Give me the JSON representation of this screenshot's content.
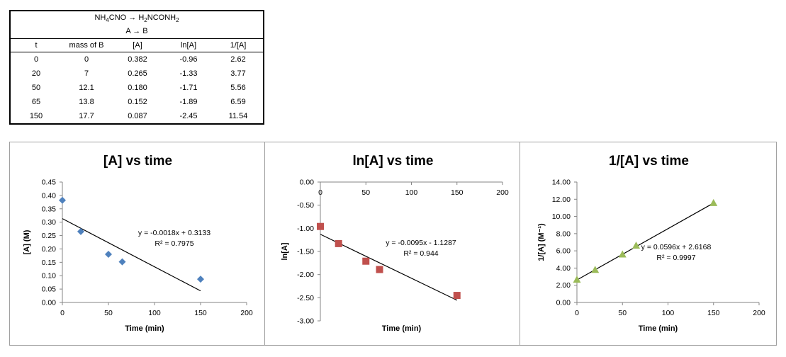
{
  "table": {
    "reaction": [
      "NH",
      "4",
      "CNO → H",
      "2",
      "NCONH",
      "2"
    ],
    "reaction_label": "A → B",
    "columns": [
      "t",
      "mass of B",
      "[A]",
      "ln[A]",
      "1/[A]"
    ],
    "rows": [
      [
        "0",
        "0",
        "0.382",
        "-0.96",
        "2.62"
      ],
      [
        "20",
        "7",
        "0.265",
        "-1.33",
        "3.77"
      ],
      [
        "50",
        "12.1",
        "0.180",
        "-1.71",
        "5.56"
      ],
      [
        "65",
        "13.8",
        "0.152",
        "-1.89",
        "6.59"
      ],
      [
        "150",
        "17.7",
        "0.087",
        "-2.45",
        "11.54"
      ]
    ]
  },
  "chart_data": [
    {
      "type": "scatter",
      "title": "[A] vs time",
      "xlabel": "Time (min)",
      "ylabel": "[A] (M)",
      "xlim": [
        0,
        200
      ],
      "xticks": [
        0,
        50,
        100,
        150,
        200
      ],
      "ylim": [
        0,
        0.45
      ],
      "yticks": [
        0,
        0.05,
        0.1,
        0.15,
        0.2,
        0.25,
        0.3,
        0.35,
        0.4,
        0.45
      ],
      "ytick_decimals": 2,
      "x": [
        0,
        20,
        50,
        65,
        150
      ],
      "y": [
        0.382,
        0.265,
        0.18,
        0.152,
        0.087
      ],
      "marker": "diamond",
      "color": "#4f81bd",
      "trendline": {
        "slope": -0.0018,
        "intercept": 0.3133,
        "from": 0,
        "to": 150
      },
      "equation": "y = -0.0018x + 0.3133",
      "r2": "R² = 0.7975",
      "grid": false
    },
    {
      "type": "scatter",
      "title": "ln[A] vs time",
      "xlabel": "Time (min)",
      "ylabel": "ln[A]",
      "xlim": [
        0,
        200
      ],
      "xticks": [
        0,
        50,
        100,
        150,
        200
      ],
      "ylim": [
        -3,
        0
      ],
      "yticks": [
        0,
        -0.5,
        -1,
        -1.5,
        -2,
        -2.5,
        -3
      ],
      "ytick_decimals": 2,
      "x_axis_at_top": true,
      "x": [
        0,
        20,
        50,
        65,
        150
      ],
      "y": [
        -0.96,
        -1.33,
        -1.71,
        -1.89,
        -2.45
      ],
      "marker": "square",
      "color": "#c0504d",
      "trendline": {
        "slope": -0.0095,
        "intercept": -1.1287,
        "from": 0,
        "to": 150
      },
      "equation": "y = -0.0095x - 1.1287",
      "r2": "R² = 0.944",
      "grid": false
    },
    {
      "type": "scatter",
      "title": "1/[A] vs time",
      "xlabel": "Time (min)",
      "ylabel": "1/[A] (M⁻¹)",
      "xlim": [
        0,
        200
      ],
      "xticks": [
        0,
        50,
        100,
        150,
        200
      ],
      "ylim": [
        0,
        14
      ],
      "yticks": [
        0,
        2,
        4,
        6,
        8,
        10,
        12,
        14
      ],
      "ytick_decimals": 2,
      "x": [
        0,
        20,
        50,
        65,
        150
      ],
      "y": [
        2.62,
        3.77,
        5.56,
        6.59,
        11.54
      ],
      "marker": "triangle",
      "color": "#9bbb59",
      "trendline": {
        "slope": 0.0596,
        "intercept": 2.6168,
        "from": 0,
        "to": 150
      },
      "equation": "y = 0.0596x + 2.6168",
      "r2": "R² = 0.9997",
      "grid": false
    }
  ]
}
